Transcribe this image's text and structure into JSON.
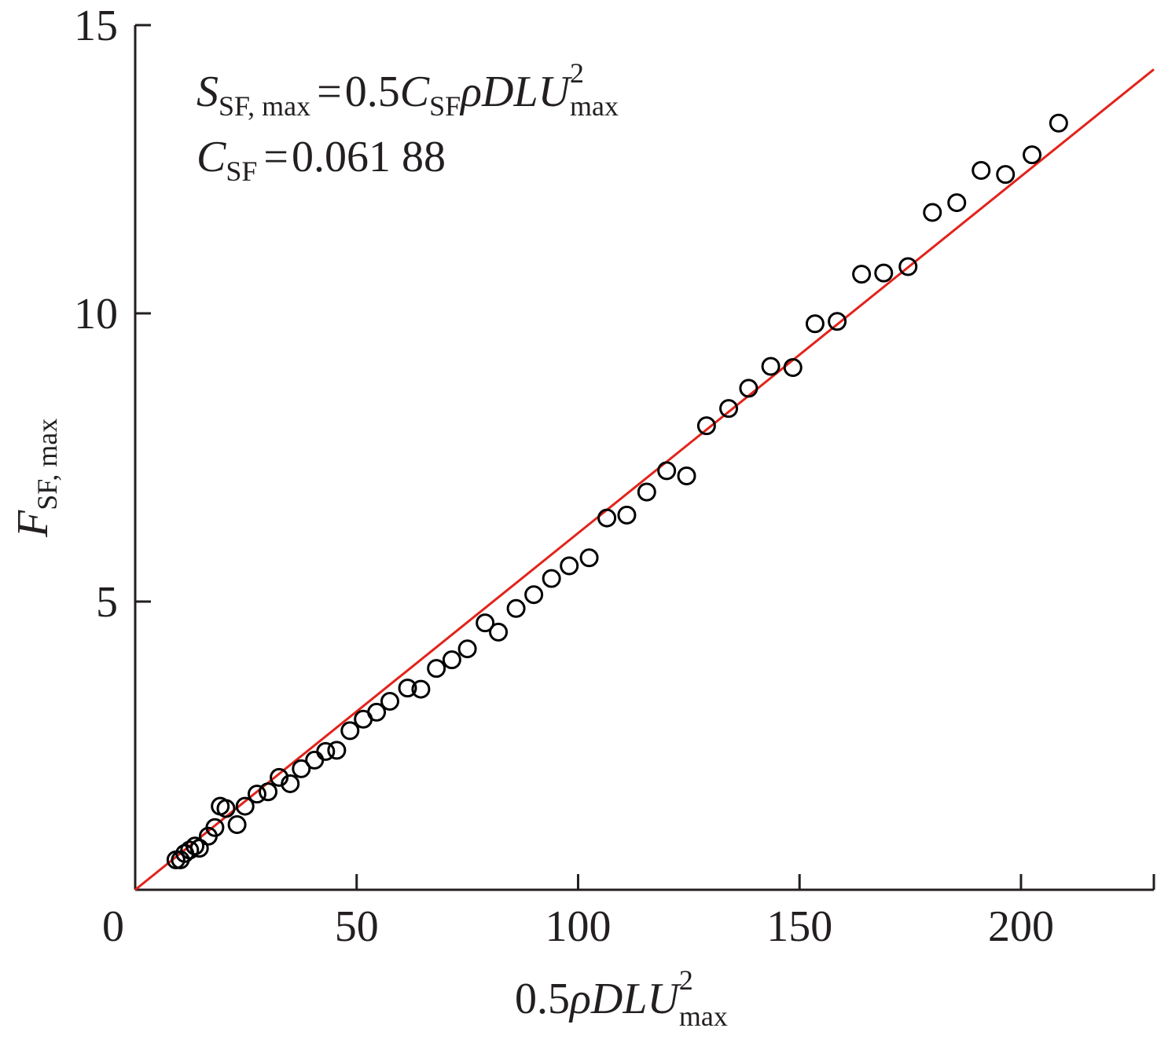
{
  "chart_data": {
    "type": "scatter",
    "xlim": [
      0,
      230
    ],
    "ylim": [
      0,
      15
    ],
    "x_ticks": [
      0,
      50,
      100,
      150,
      200
    ],
    "y_ticks": [
      5,
      10,
      15
    ],
    "xlabel": {
      "base": "0.5",
      "symbols": "ρDLU",
      "sup": "2",
      "sub": "max"
    },
    "ylabel": {
      "base": "F",
      "sub": "SF, max"
    },
    "annotation": {
      "eq1": {
        "lhs": "S",
        "lhs_sub": "SF, max",
        "eq": "=",
        "coef": "0.5",
        "c": "C",
        "c_sub": "SF",
        "rest": "ρDLU",
        "sup": "2",
        "rest_sub": "max"
      },
      "eq2": {
        "lhs": "C",
        "lhs_sub": "SF",
        "eq": "=",
        "value": "0.061 88"
      }
    },
    "fit_line": {
      "slope": 0.06188,
      "x_range": [
        0,
        230
      ],
      "color": "#e2231a"
    },
    "marker_color": "#000000",
    "axis_color": "#231f20",
    "points": [
      [
        9.2,
        0.52
      ],
      [
        10.2,
        0.52
      ],
      [
        11.2,
        0.63
      ],
      [
        12.3,
        0.69
      ],
      [
        13.5,
        0.76
      ],
      [
        14.5,
        0.72
      ],
      [
        16.5,
        0.93
      ],
      [
        18.0,
        1.08
      ],
      [
        19.2,
        1.45
      ],
      [
        20.5,
        1.41
      ],
      [
        23.0,
        1.13
      ],
      [
        24.8,
        1.45
      ],
      [
        27.5,
        1.66
      ],
      [
        30.0,
        1.7
      ],
      [
        32.5,
        1.95
      ],
      [
        35.0,
        1.84
      ],
      [
        37.5,
        2.1
      ],
      [
        40.5,
        2.25
      ],
      [
        43.0,
        2.4
      ],
      [
        45.5,
        2.42
      ],
      [
        48.5,
        2.76
      ],
      [
        51.5,
        2.96
      ],
      [
        54.5,
        3.08
      ],
      [
        57.5,
        3.27
      ],
      [
        61.5,
        3.5
      ],
      [
        64.5,
        3.48
      ],
      [
        68.0,
        3.84
      ],
      [
        71.5,
        3.99
      ],
      [
        75.0,
        4.18
      ],
      [
        79.0,
        4.63
      ],
      [
        82.0,
        4.47
      ],
      [
        86.0,
        4.88
      ],
      [
        90.0,
        5.12
      ],
      [
        94.0,
        5.4
      ],
      [
        98.0,
        5.62
      ],
      [
        102.5,
        5.76
      ],
      [
        106.5,
        6.45
      ],
      [
        111.0,
        6.5
      ],
      [
        115.5,
        6.9
      ],
      [
        120.0,
        7.27
      ],
      [
        124.5,
        7.18
      ],
      [
        129.0,
        8.05
      ],
      [
        134.0,
        8.35
      ],
      [
        138.5,
        8.7
      ],
      [
        143.5,
        9.08
      ],
      [
        148.5,
        9.06
      ],
      [
        153.5,
        9.82
      ],
      [
        158.5,
        9.86
      ],
      [
        164.0,
        10.68
      ],
      [
        169.0,
        10.7
      ],
      [
        174.5,
        10.81
      ],
      [
        180.0,
        11.75
      ],
      [
        185.5,
        11.92
      ],
      [
        191.0,
        12.48
      ],
      [
        196.5,
        12.41
      ],
      [
        202.5,
        12.75
      ],
      [
        208.5,
        13.3
      ]
    ]
  }
}
